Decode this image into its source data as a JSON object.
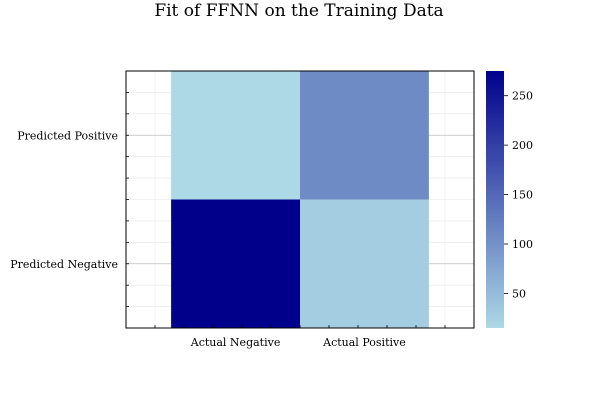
{
  "chart_data": {
    "type": "heatmap",
    "title": "Fit of FFNN on the Training Data",
    "xlabel": "",
    "ylabel": "",
    "x_categories": [
      "Actual Negative",
      "Actual Positive"
    ],
    "y_categories": [
      "Predicted Negative",
      "Predicted Positive"
    ],
    "cells": [
      {
        "x": "Actual Negative",
        "y": "Predicted Negative",
        "value": 275
      },
      {
        "x": "Actual Positive",
        "y": "Predicted Negative",
        "value": 28
      },
      {
        "x": "Actual Negative",
        "y": "Predicted Positive",
        "value": 15
      },
      {
        "x": "Actual Positive",
        "y": "Predicted Positive",
        "value": 108
      }
    ],
    "colorbar": {
      "range": [
        15,
        275
      ],
      "ticks": [
        50,
        100,
        150,
        200,
        250
      ],
      "colors": [
        "#add8e6",
        "#00008b"
      ]
    },
    "grid": true
  }
}
